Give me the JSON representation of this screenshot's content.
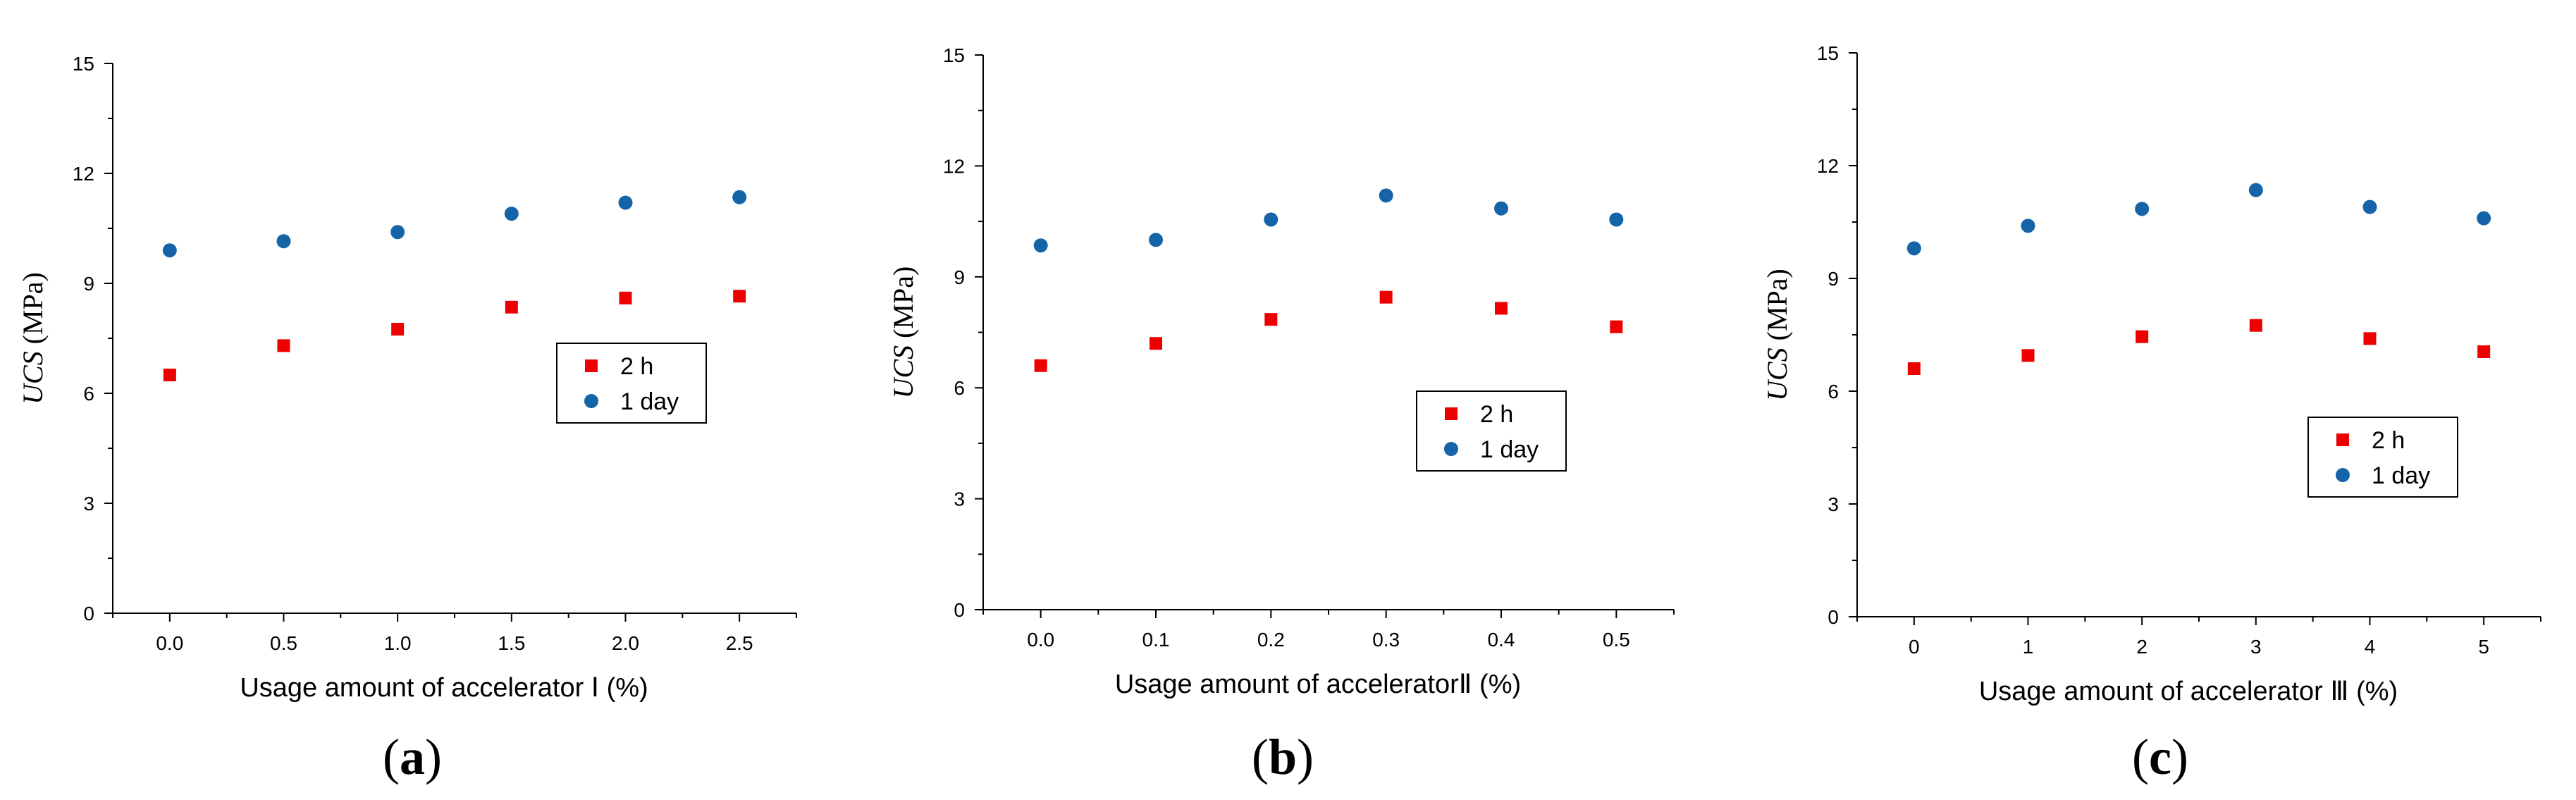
{
  "colors": {
    "series_2h": "#ee0000",
    "series_1day": "#1664a8",
    "axis": "#000000"
  },
  "chart_data": [
    {
      "type": "scatter",
      "caption_open": "(",
      "caption_letter": "a",
      "caption_close": ")",
      "xlabel": "Usage amount of accelerator Ⅰ (%)",
      "ylabel_italic": "UCS",
      "ylabel_unit": " (MPa)",
      "x": [
        0.0,
        0.5,
        1.0,
        1.5,
        2.0,
        2.5
      ],
      "x_tick_labels": [
        "0.0",
        "0.5",
        "1.0",
        "1.5",
        "2.0",
        "2.5"
      ],
      "xlim": [
        -0.25,
        2.75
      ],
      "ylim": [
        0,
        15
      ],
      "y_ticks": [
        0,
        3,
        6,
        9,
        12,
        15
      ],
      "legend_location": "center-right",
      "series": [
        {
          "name": "2 h",
          "marker": "square",
          "values": [
            6.5,
            7.3,
            7.75,
            8.35,
            8.6,
            8.65
          ]
        },
        {
          "name": "1 day",
          "marker": "circle",
          "values": [
            9.9,
            10.15,
            10.4,
            10.9,
            11.2,
            11.35
          ]
        }
      ]
    },
    {
      "type": "scatter",
      "caption_open": "(",
      "caption_letter": "b",
      "caption_close": ")",
      "xlabel": "Usage amount of acceleratorⅡ (%)",
      "ylabel_italic": "UCS",
      "ylabel_unit": " (MPa)",
      "x": [
        0.0,
        0.1,
        0.2,
        0.3,
        0.4,
        0.5
      ],
      "x_tick_labels": [
        "0.0",
        "0.1",
        "0.2",
        "0.3",
        "0.4",
        "0.5"
      ],
      "xlim": [
        -0.05,
        0.55
      ],
      "ylim": [
        0,
        15
      ],
      "y_ticks": [
        0,
        3,
        6,
        9,
        12,
        15
      ],
      "legend_location": "center-right",
      "series": [
        {
          "name": "2 h",
          "marker": "square",
          "values": [
            6.6,
            7.2,
            7.85,
            8.45,
            8.15,
            7.65
          ]
        },
        {
          "name": "1 day",
          "marker": "circle",
          "values": [
            9.85,
            10.0,
            10.55,
            11.2,
            10.85,
            10.55
          ]
        }
      ]
    },
    {
      "type": "scatter",
      "caption_open": "(",
      "caption_letter": "c",
      "caption_close": ")",
      "xlabel": "Usage amount of accelerator Ⅲ (%)",
      "ylabel_italic": "UCS",
      "ylabel_unit": " (MPa)",
      "x": [
        0,
        1,
        2,
        3,
        4,
        5
      ],
      "x_tick_labels": [
        "0",
        "1",
        "2",
        "3",
        "4",
        "5"
      ],
      "xlim": [
        -0.5,
        5.5
      ],
      "ylim": [
        0,
        15
      ],
      "y_ticks": [
        0,
        3,
        6,
        9,
        12,
        15
      ],
      "legend_location": "right",
      "series": [
        {
          "name": "2 h",
          "marker": "square",
          "values": [
            6.6,
            6.95,
            7.45,
            7.75,
            7.4,
            7.05
          ]
        },
        {
          "name": "1 day",
          "marker": "circle",
          "values": [
            9.8,
            10.4,
            10.85,
            11.35,
            10.9,
            10.6
          ]
        }
      ]
    }
  ]
}
